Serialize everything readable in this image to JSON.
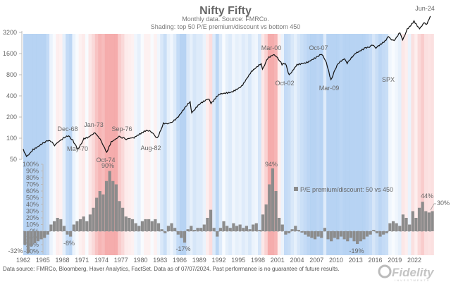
{
  "chart_data": [
    {
      "type": "line",
      "title": "Nifty Fifty",
      "subtitle": [
        "Monthly data.  Source: FMRCo.",
        "Shading: top 50 P/E premium/discount vs bottom 450"
      ],
      "series_label": "SPX",
      "yscale": "log",
      "ylim": [
        50,
        5600
      ],
      "yticks": [
        "50",
        "100",
        "200",
        "400",
        "800",
        "1600",
        "3200"
      ],
      "ytick_values": [
        50,
        100,
        200,
        400,
        800,
        1600,
        3200
      ],
      "x": [
        1962.0,
        1962.5,
        1963.5,
        1965.0,
        1966.1,
        1966.8,
        1968.0,
        1968.95,
        1969.6,
        1970.4,
        1971.3,
        1972.0,
        1973.05,
        1973.8,
        1974.8,
        1975.5,
        1976.7,
        1977.8,
        1979.0,
        1980.9,
        1982.0,
        1982.6,
        1983.5,
        1984.5,
        1985.8,
        1987.6,
        1987.85,
        1989.0,
        1990.5,
        1990.8,
        1992.0,
        1994.0,
        1995.5,
        1997.0,
        1998.5,
        1998.7,
        1999.5,
        2000.2,
        2000.8,
        2001.7,
        2002.2,
        2002.8,
        2004.0,
        2005.5,
        2007.0,
        2007.8,
        2008.5,
        2009.2,
        2010.3,
        2011.3,
        2011.7,
        2013.0,
        2014.5,
        2015.6,
        2016.1,
        2017.5,
        2018.0,
        2018.9,
        2019.8,
        2020.2,
        2020.9,
        2021.95,
        2022.8,
        2023.5,
        2023.8,
        2024.45
      ],
      "y": [
        70,
        55,
        70,
        86,
        92,
        78,
        96,
        108,
        95,
        70,
        100,
        104,
        118,
        98,
        63,
        90,
        107,
        95,
        100,
        130,
        115,
        102,
        165,
        165,
        200,
        330,
        230,
        300,
        360,
        310,
        420,
        460,
        560,
        900,
        1150,
        960,
        1350,
        1500,
        1450,
        1100,
        1150,
        800,
        1130,
        1220,
        1450,
        1550,
        1200,
        680,
        1150,
        1350,
        1150,
        1600,
        1950,
        2100,
        1900,
        2450,
        2800,
        2450,
        3150,
        2500,
        3600,
        4700,
        3600,
        4400,
        4150,
        5460
      ],
      "annotations": [
        "Dec-68",
        "May-70",
        "Jan-73",
        "Oct-74",
        "Sep-76",
        "Aug-82",
        "Mar-00",
        "Oct-02",
        "Oct-07",
        "Mar-09",
        "Jun-24"
      ]
    },
    {
      "type": "bar",
      "legend": "P/E premium/discount: 50 vs 450",
      "legend_position": "center-right",
      "ylim": [
        -30,
        100
      ],
      "yticks": [
        "100%",
        "90%",
        "80%",
        "70%",
        "60%",
        "50%",
        "40%",
        "30%",
        "20%",
        "10%",
        "0%",
        "-10%",
        "-20%",
        "-30%"
      ],
      "ytick_values": [
        100,
        90,
        80,
        70,
        60,
        50,
        40,
        30,
        20,
        10,
        0,
        -10,
        -20,
        -30
      ],
      "xticks": [
        "1962",
        "1965",
        "1968",
        "1971",
        "1974",
        "1977",
        "1980",
        "1983",
        "1986",
        "1989",
        "1992",
        "1995",
        "1998",
        "2001",
        "2004",
        "2007",
        "2010",
        "2013",
        "2016",
        "2019",
        "2022"
      ],
      "x_start": 1962.0,
      "x_step": 0.5,
      "values": [
        -20,
        -32,
        -22,
        -18,
        -15,
        -12,
        -10,
        -5,
        10,
        15,
        20,
        18,
        8,
        -5,
        -8,
        10,
        15,
        18,
        22,
        15,
        25,
        35,
        50,
        60,
        55,
        75,
        90,
        75,
        70,
        45,
        35,
        22,
        20,
        18,
        12,
        8,
        15,
        18,
        18,
        15,
        18,
        12,
        3,
        -3,
        8,
        12,
        5,
        -5,
        -10,
        -17,
        3,
        8,
        2,
        5,
        5,
        10,
        20,
        32,
        5,
        -8,
        5,
        15,
        8,
        5,
        12,
        8,
        10,
        5,
        8,
        3,
        10,
        12,
        2,
        25,
        40,
        70,
        94,
        60,
        20,
        10,
        -5,
        -3,
        3,
        8,
        2,
        -2,
        -5,
        -8,
        -10,
        -12,
        -8,
        -10,
        5,
        -12,
        -15,
        -10,
        -12,
        -8,
        -12,
        -15,
        -10,
        -15,
        -19,
        -15,
        -12,
        -8,
        -5,
        2,
        -3,
        -8,
        -5,
        -3,
        12,
        15,
        12,
        8,
        25,
        20,
        10,
        30,
        20,
        35,
        44,
        30,
        28,
        30
      ],
      "annotations": [
        "90%",
        "-8%",
        "-17%",
        "94%",
        "-19%",
        "44%",
        "30%",
        "-32%"
      ]
    }
  ],
  "colors": {
    "line": "#111111",
    "bars": "#8c8c8c",
    "premium_shade": "#f08080",
    "discount_shade": "#6fa8e8"
  },
  "footer": "Data source: FMRCo, Bloomberg, Haver Analytics, FactSet. Data as of 07/07/2024. Past performance is no guarantee of future results.",
  "logo": {
    "name": "Fidelity",
    "sub": "INVESTMENTS"
  }
}
